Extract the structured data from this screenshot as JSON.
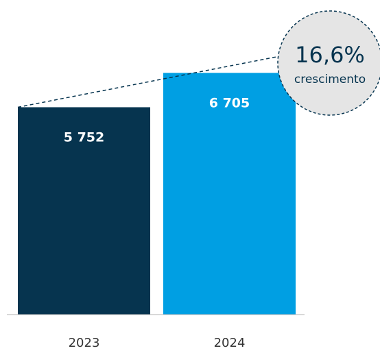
{
  "chart_data": {
    "type": "bar",
    "categories": [
      "2023",
      "2024"
    ],
    "values": [
      5752,
      6705
    ],
    "value_labels": [
      "5 752",
      "6 705"
    ],
    "ylim": [
      0,
      7700
    ],
    "grid": false,
    "annotation": {
      "value": "16,6%",
      "label": "crescimento"
    },
    "colors": {
      "bar_2023": "#06344f",
      "bar_2024": "#009fe3",
      "bar_label": "#ffffff",
      "tick_label": "#333333",
      "axis": "#b3b3b3",
      "callout_fill": "#e5e5e5",
      "callout_stroke": "#06344f",
      "dashed_line": "#06344f"
    }
  }
}
